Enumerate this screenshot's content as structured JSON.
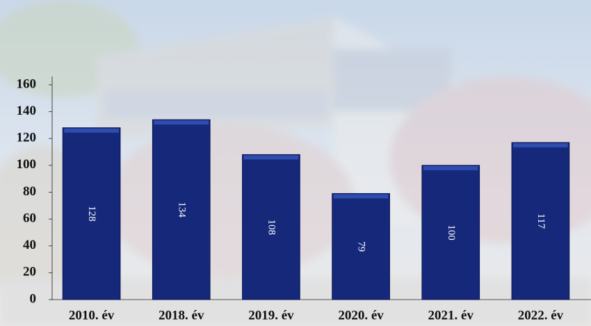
{
  "chart_data": {
    "type": "bar",
    "categories": [
      "2010. év",
      "2018. év",
      "2019. év",
      "2020. év",
      "2021. év",
      "2022. év"
    ],
    "values": [
      128,
      134,
      108,
      79,
      100,
      117
    ],
    "color": "#15287a",
    "ylim": [
      0,
      160
    ],
    "yticks": [
      0,
      20,
      40,
      60,
      80,
      100,
      120,
      140,
      160
    ]
  }
}
